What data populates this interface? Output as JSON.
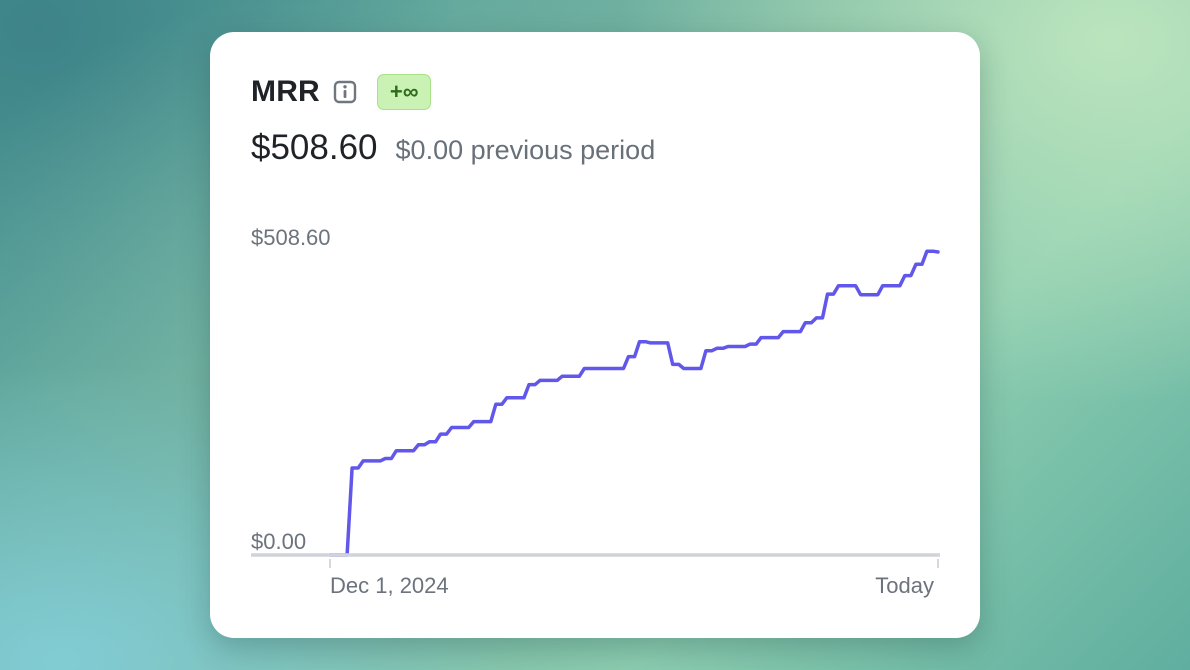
{
  "card": {
    "title": "MRR",
    "info_icon": "info-icon",
    "badge": "+∞",
    "current_value": "$508.60",
    "previous_value": "$0.00 previous period"
  },
  "colors": {
    "line": "#6157ea",
    "axis": "#d0d4da",
    "badge_bg": "#c9f2b4",
    "badge_text": "#2f6b1c"
  },
  "chart_data": {
    "type": "line",
    "title": "MRR",
    "ylim": [
      0,
      508.6
    ],
    "y_tick_labels": [
      "$508.60",
      "$0.00"
    ],
    "x_tick_labels": [
      "Dec 1, 2024",
      "Today"
    ],
    "grid": false,
    "series": [
      {
        "values": [
          0,
          0,
          146,
          158,
          158,
          162,
          175,
          175,
          185,
          190,
          203,
          214,
          214,
          224,
          224,
          253,
          264,
          264,
          286,
          293,
          293,
          300,
          300,
          313,
          313,
          313,
          313,
          333,
          358,
          356,
          356,
          320,
          313,
          313,
          343,
          347,
          350,
          350,
          354,
          365,
          365,
          375,
          375,
          390,
          398,
          438,
          452,
          452,
          437,
          437,
          452,
          452,
          469,
          488,
          510,
          508.6
        ]
      }
    ]
  }
}
